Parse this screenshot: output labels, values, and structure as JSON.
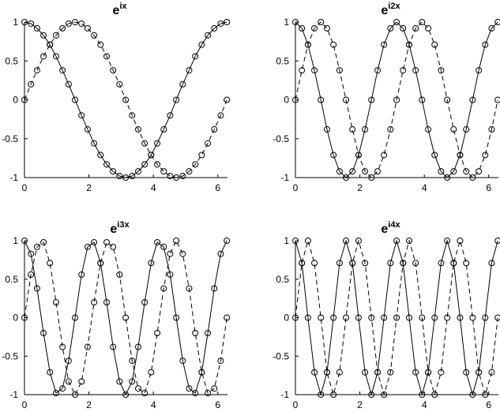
{
  "chart_data": [
    {
      "type": "line",
      "title": "e",
      "title_superscript": "ix",
      "x": [
        0,
        0.2,
        0.39,
        0.59,
        0.79,
        0.98,
        1.18,
        1.37,
        1.57,
        1.77,
        1.96,
        2.16,
        2.36,
        2.55,
        2.75,
        2.95,
        3.14,
        3.34,
        3.53,
        3.73,
        3.93,
        4.12,
        4.32,
        4.52,
        4.71,
        4.91,
        5.11,
        5.3,
        5.5,
        5.69,
        5.89,
        6.09,
        6.28
      ],
      "series": [
        {
          "color": "#000000",
          "line_style": "solid",
          "marker": "circle",
          "values": [
            1,
            0.98,
            0.92,
            0.83,
            0.71,
            0.56,
            0.38,
            0.2,
            0,
            -0.2,
            -0.38,
            -0.56,
            -0.71,
            -0.83,
            -0.92,
            -0.98,
            -1,
            -0.98,
            -0.92,
            -0.83,
            -0.71,
            -0.56,
            -0.38,
            -0.2,
            0,
            0.2,
            0.38,
            0.56,
            0.71,
            0.83,
            0.92,
            0.98,
            1
          ]
        },
        {
          "color": "#000000",
          "line_style": "dashed",
          "marker": "circle",
          "values": [
            0,
            0.2,
            0.38,
            0.56,
            0.71,
            0.83,
            0.92,
            0.98,
            1,
            0.98,
            0.92,
            0.83,
            0.71,
            0.56,
            0.38,
            0.2,
            0,
            -0.2,
            -0.38,
            -0.56,
            -0.71,
            -0.83,
            -0.92,
            -0.98,
            -1,
            -0.98,
            -0.92,
            -0.83,
            -0.71,
            -0.56,
            -0.38,
            -0.2,
            0
          ]
        }
      ],
      "xlim": [
        0,
        6.3
      ],
      "xticks": [
        0,
        2,
        4,
        6
      ],
      "ylim": [
        -1,
        1
      ],
      "yticks": [
        -1,
        -0.5,
        0,
        0.5,
        1
      ]
    },
    {
      "type": "line",
      "title": "e",
      "title_superscript": "i2x",
      "x": [
        0,
        0.2,
        0.39,
        0.59,
        0.79,
        0.98,
        1.18,
        1.37,
        1.57,
        1.77,
        1.96,
        2.16,
        2.36,
        2.55,
        2.75,
        2.95,
        3.14,
        3.34,
        3.53,
        3.73,
        3.93,
        4.12,
        4.32,
        4.52,
        4.71,
        4.91,
        5.11,
        5.3,
        5.5,
        5.69,
        5.89,
        6.09,
        6.28
      ],
      "series": [
        {
          "color": "#000000",
          "line_style": "solid",
          "marker": "circle",
          "values": [
            1,
            0.92,
            0.71,
            0.38,
            0,
            -0.38,
            -0.71,
            -0.92,
            -1,
            -0.92,
            -0.71,
            -0.38,
            0,
            0.38,
            0.71,
            0.92,
            1,
            0.92,
            0.71,
            0.38,
            0,
            -0.38,
            -0.71,
            -0.92,
            -1,
            -0.92,
            -0.71,
            -0.38,
            0,
            0.38,
            0.71,
            0.92,
            1
          ]
        },
        {
          "color": "#000000",
          "line_style": "dashed",
          "marker": "circle",
          "values": [
            0,
            0.38,
            0.71,
            0.92,
            1,
            0.92,
            0.71,
            0.38,
            0,
            -0.38,
            -0.71,
            -0.92,
            -1,
            -0.92,
            -0.71,
            -0.38,
            0,
            0.38,
            0.71,
            0.92,
            1,
            0.92,
            0.71,
            0.38,
            0,
            -0.38,
            -0.71,
            -0.92,
            -1,
            -0.92,
            -0.71,
            -0.38,
            0
          ]
        }
      ],
      "xlim": [
        0,
        6.3
      ],
      "xticks": [
        0,
        2,
        4,
        6
      ],
      "ylim": [
        -1,
        1
      ],
      "yticks": [
        -1,
        -0.5,
        0,
        0.5,
        1
      ]
    },
    {
      "type": "line",
      "title": "e",
      "title_superscript": "i3x",
      "x": [
        0,
        0.2,
        0.39,
        0.59,
        0.79,
        0.98,
        1.18,
        1.37,
        1.57,
        1.77,
        1.96,
        2.16,
        2.36,
        2.55,
        2.75,
        2.95,
        3.14,
        3.34,
        3.53,
        3.73,
        3.93,
        4.12,
        4.32,
        4.52,
        4.71,
        4.91,
        5.11,
        5.3,
        5.5,
        5.69,
        5.89,
        6.09,
        6.28
      ],
      "series": [
        {
          "color": "#000000",
          "line_style": "solid",
          "marker": "circle",
          "values": [
            1,
            0.83,
            0.38,
            -0.2,
            -0.71,
            -0.98,
            -0.92,
            -0.56,
            0,
            0.56,
            0.92,
            0.98,
            0.71,
            0.2,
            -0.38,
            -0.83,
            -1,
            -0.83,
            -0.38,
            0.2,
            0.71,
            0.98,
            0.92,
            0.56,
            0,
            -0.56,
            -0.92,
            -0.98,
            -0.71,
            -0.2,
            0.38,
            0.83,
            1
          ]
        },
        {
          "color": "#000000",
          "line_style": "dashed",
          "marker": "circle",
          "values": [
            0,
            0.56,
            0.92,
            0.98,
            0.71,
            0.2,
            -0.38,
            -0.83,
            -1,
            -0.83,
            -0.38,
            0.2,
            0.71,
            0.98,
            0.92,
            0.56,
            0,
            -0.56,
            -0.92,
            -0.98,
            -0.71,
            -0.2,
            0.38,
            0.83,
            1,
            0.83,
            0.38,
            -0.2,
            -0.71,
            -0.98,
            -0.92,
            -0.56,
            0
          ]
        }
      ],
      "xlim": [
        0,
        6.3
      ],
      "xticks": [
        0,
        2,
        4,
        6
      ],
      "ylim": [
        -1,
        1
      ],
      "yticks": [
        -1,
        -0.5,
        0,
        0.5,
        1
      ]
    },
    {
      "type": "line",
      "title": "e",
      "title_superscript": "i4x",
      "x": [
        0,
        0.2,
        0.39,
        0.59,
        0.79,
        0.98,
        1.18,
        1.37,
        1.57,
        1.77,
        1.96,
        2.16,
        2.36,
        2.55,
        2.75,
        2.95,
        3.14,
        3.34,
        3.53,
        3.73,
        3.93,
        4.12,
        4.32,
        4.52,
        4.71,
        4.91,
        5.11,
        5.3,
        5.5,
        5.69,
        5.89,
        6.09,
        6.28
      ],
      "series": [
        {
          "color": "#000000",
          "line_style": "solid",
          "marker": "circle",
          "values": [
            1,
            0.71,
            0,
            -0.71,
            -1,
            -0.71,
            0,
            0.71,
            1,
            0.71,
            0,
            -0.71,
            -1,
            -0.71,
            0,
            0.71,
            1,
            0.71,
            0,
            -0.71,
            -1,
            -0.71,
            0,
            0.71,
            1,
            0.71,
            0,
            -0.71,
            -1,
            -0.71,
            0,
            0.71,
            1
          ]
        },
        {
          "color": "#000000",
          "line_style": "dashed",
          "marker": "circle",
          "values": [
            0,
            0.71,
            1,
            0.71,
            0,
            -0.71,
            -1,
            -0.71,
            0,
            0.71,
            1,
            0.71,
            0,
            -0.71,
            -1,
            -0.71,
            0,
            0.71,
            1,
            0.71,
            0,
            -0.71,
            -1,
            -0.71,
            0,
            0.71,
            1,
            0.71,
            0,
            -0.71,
            -1,
            -0.71,
            0
          ]
        }
      ],
      "xlim": [
        0,
        6.3
      ],
      "xticks": [
        0,
        2,
        4,
        6
      ],
      "ylim": [
        -1,
        1
      ],
      "yticks": [
        -1,
        -0.5,
        0,
        0.5,
        1
      ]
    }
  ]
}
